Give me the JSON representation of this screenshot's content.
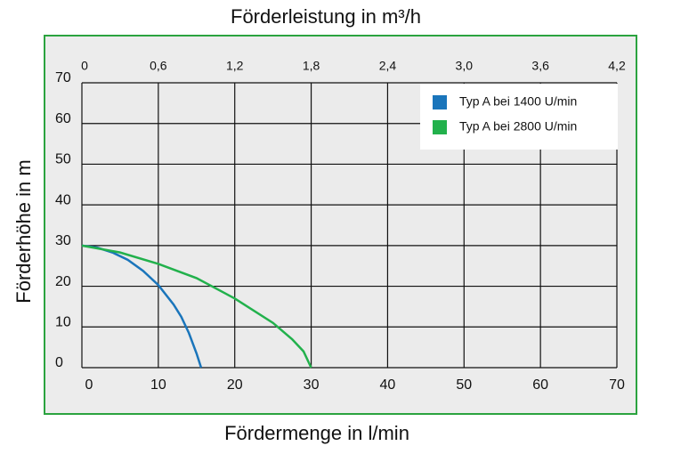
{
  "chart_data": {
    "type": "line",
    "x2label": "Förderleistung in m³/h",
    "xlabel": "Fördermenge in l/min",
    "ylabel": "Förderhöhe in m",
    "xlim": [
      0,
      70
    ],
    "xticks": [
      0,
      10,
      20,
      30,
      40,
      50,
      60,
      70
    ],
    "x2lim": [
      0,
      4.2
    ],
    "x2ticks": [
      0,
      {
        "value": 0.6,
        "label": "0,6"
      },
      {
        "value": 1.2,
        "label": "1,2"
      },
      {
        "value": 1.8,
        "label": "1,8"
      },
      {
        "value": 2.4,
        "label": "2,4"
      },
      {
        "value": 3.0,
        "label": "3,0"
      },
      {
        "value": 3.6,
        "label": "3,6"
      },
      {
        "value": 4.2,
        "label": "4,2"
      }
    ],
    "ylim": [
      0,
      70
    ],
    "yticks": [
      0,
      10,
      20,
      30,
      40,
      50,
      60,
      70
    ],
    "grid": true,
    "legend": "upper right",
    "series": [
      {
        "name": "Typ A bei 1400 U/min",
        "color": "#1a75bb",
        "x": [
          0,
          2,
          4,
          6,
          8,
          10,
          12,
          13,
          14,
          15,
          15.6
        ],
        "values": [
          30,
          29.5,
          28.3,
          26.5,
          23.8,
          20.3,
          15.5,
          12.5,
          8.5,
          3.5,
          0
        ]
      },
      {
        "name": "Typ A bei 2800 U/min",
        "color": "#22b14c",
        "x": [
          0,
          5,
          10,
          15,
          20,
          25,
          27.5,
          29,
          30
        ],
        "values": [
          30,
          28.3,
          25.5,
          22,
          17,
          11,
          7,
          4,
          0
        ]
      }
    ]
  }
}
